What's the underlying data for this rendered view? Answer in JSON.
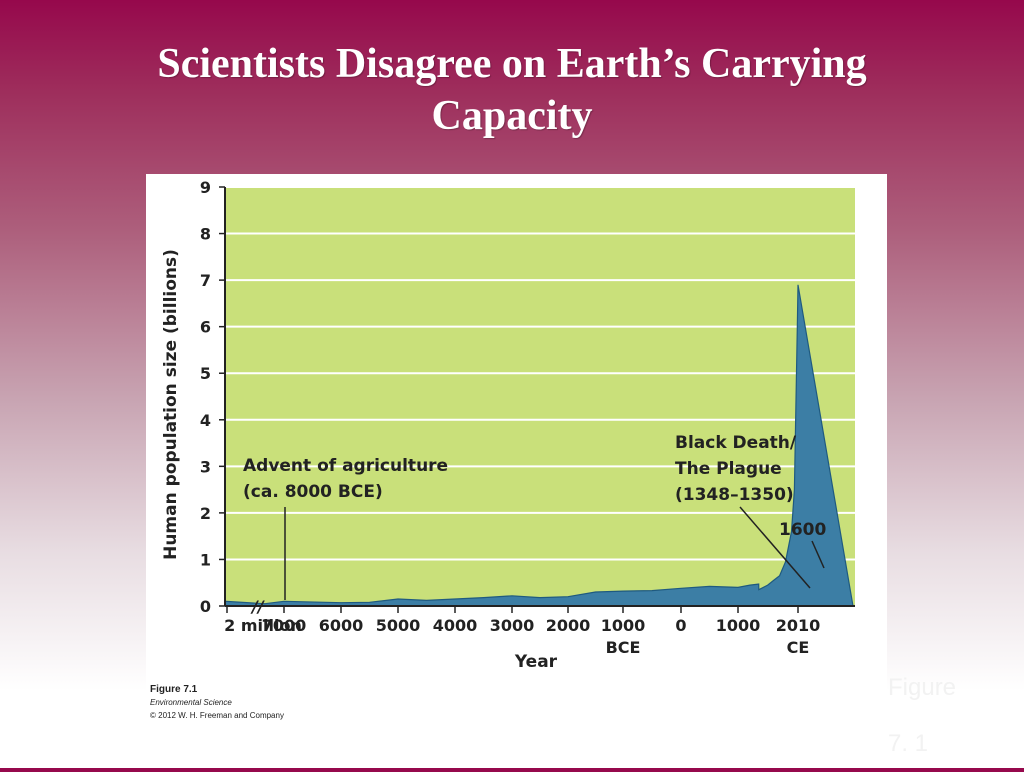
{
  "slide": {
    "title_line1": "Scientists Disagree on Earth’s Carrying",
    "title_line2": "Capacity",
    "side_note_line1": "Figure",
    "side_note_line2": "7. 1"
  },
  "figure": {
    "label": "Figure 7.1",
    "book": "Environmental Science",
    "copyright": "© 2012 W. H. Freeman and Company"
  },
  "colors": {
    "plot_background": "#c9e07a",
    "area_fill": "#3c7ea5",
    "area_edge": "#1f5a80",
    "gridline": "#ffffff"
  },
  "chart_data": {
    "type": "area",
    "ylabel": "Human population size (billions)",
    "xlabel": "Year",
    "ylim": [
      0,
      9
    ],
    "y_ticks": [
      "0",
      "1",
      "2",
      "3",
      "4",
      "5",
      "6",
      "7",
      "8",
      "9"
    ],
    "x_tick_labels": [
      [
        "2 million"
      ],
      [
        "7000"
      ],
      [
        "6000"
      ],
      [
        "5000"
      ],
      [
        "4000"
      ],
      [
        "3000"
      ],
      [
        "2000"
      ],
      [
        "1000",
        "BCE"
      ],
      [
        "0"
      ],
      [
        "1000"
      ],
      [
        "2010",
        "CE"
      ]
    ],
    "axis_break": "//",
    "grid": true,
    "series": [
      {
        "x": [
          -2000000,
          -8000,
          -7000,
          -6000,
          -5500,
          -5000,
          -4500,
          -4000,
          -3500,
          -3000,
          -2500,
          -2000,
          -1500,
          -1000,
          -500,
          0,
          500,
          1000,
          1200,
          1348,
          1350,
          1500,
          1600,
          1700,
          1800,
          1900,
          1950,
          2000,
          2010
        ],
        "y": [
          0.1,
          0.05,
          0.1,
          0.07,
          0.08,
          0.15,
          0.12,
          0.15,
          0.18,
          0.22,
          0.18,
          0.2,
          0.3,
          0.32,
          0.33,
          0.38,
          0.42,
          0.4,
          0.45,
          0.47,
          0.35,
          0.45,
          0.55,
          0.65,
          0.95,
          1.6,
          2.5,
          6.1,
          6.9
        ]
      }
    ],
    "annotations": [
      {
        "lines": [
          "Advent of agriculture",
          "(ca. 8000 BCE)"
        ],
        "x": -8000
      },
      {
        "lines": [
          "Black Death/",
          "The Plague",
          "(1348–1350)"
        ],
        "x": 1348
      },
      {
        "lines": [
          "1600"
        ],
        "x": 1600
      }
    ]
  }
}
